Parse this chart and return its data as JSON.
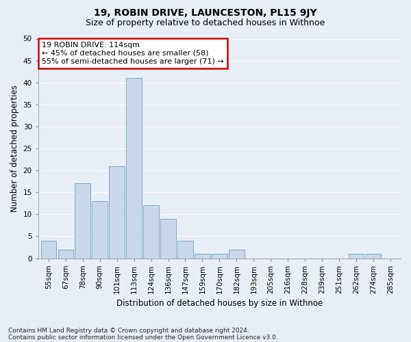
{
  "title1": "19, ROBIN DRIVE, LAUNCESTON, PL15 9JY",
  "title2": "Size of property relative to detached houses in Withnoe",
  "xlabel": "Distribution of detached houses by size in Withnoe",
  "ylabel": "Number of detached properties",
  "categories": [
    "55sqm",
    "67sqm",
    "78sqm",
    "90sqm",
    "101sqm",
    "113sqm",
    "124sqm",
    "136sqm",
    "147sqm",
    "159sqm",
    "170sqm",
    "182sqm",
    "193sqm",
    "205sqm",
    "216sqm",
    "228sqm",
    "239sqm",
    "251sqm",
    "262sqm",
    "274sqm",
    "285sqm"
  ],
  "values": [
    4,
    2,
    17,
    13,
    21,
    41,
    12,
    9,
    4,
    1,
    1,
    2,
    0,
    0,
    0,
    0,
    0,
    0,
    1,
    1,
    0
  ],
  "bar_color": "#c8d8ea",
  "bar_edge_color": "#7aaacb",
  "highlight_index": 5,
  "ylim": [
    0,
    50
  ],
  "yticks": [
    0,
    5,
    10,
    15,
    20,
    25,
    30,
    35,
    40,
    45,
    50
  ],
  "annotation_title": "19 ROBIN DRIVE: 114sqm",
  "annotation_line1": "← 45% of detached houses are smaller (58)",
  "annotation_line2": "55% of semi-detached houses are larger (71) →",
  "annotation_box_facecolor": "#ffffff",
  "annotation_box_edgecolor": "#cc0000",
  "footnote1": "Contains HM Land Registry data © Crown copyright and database right 2024.",
  "footnote2": "Contains public sector information licensed under the Open Government Licence v3.0.",
  "bg_color": "#e8eef5",
  "grid_color": "#ffffff",
  "title1_fontsize": 10,
  "title2_fontsize": 9,
  "xlabel_fontsize": 8.5,
  "ylabel_fontsize": 8.5,
  "tick_fontsize": 7.5,
  "footnote_fontsize": 6.5,
  "ann_fontsize": 8
}
